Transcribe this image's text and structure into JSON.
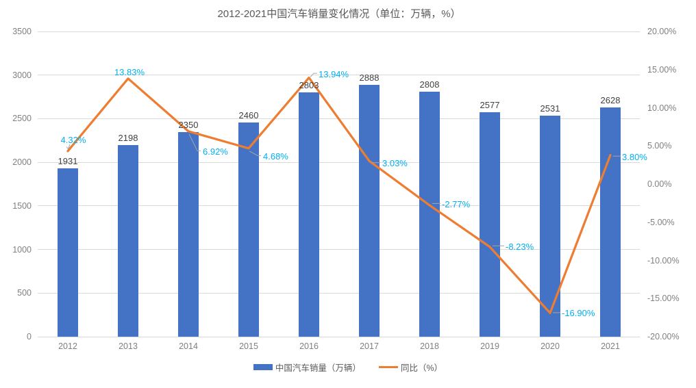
{
  "colors": {
    "bar": "#4472C4",
    "line": "#ED7D31",
    "pct_label": "#00B0F0",
    "value_label": "#404040",
    "axis_label": "#808080",
    "gridline": "#D9D9D9",
    "leader": "#A6A6A6",
    "title": "#595959",
    "legend_text": "#595959",
    "background": "#FFFFFF"
  },
  "legend": {
    "items": [
      {
        "label": "中国汽车销量（万辆）",
        "swatch": "bar-swatch"
      },
      {
        "label": "同比（%）",
        "swatch": "line-swatch"
      }
    ]
  },
  "chart_data": {
    "type": "combo bar+line",
    "title": "2012-2021中国汽车销量变化情况（单位：万辆，%）",
    "categories": [
      "2012",
      "2013",
      "2014",
      "2015",
      "2016",
      "2017",
      "2018",
      "2019",
      "2020",
      "2021"
    ],
    "series": [
      {
        "name": "中国汽车销量（万辆）",
        "type": "bar",
        "axis": "left",
        "color": "#4472C4",
        "values": [
          1931,
          2198,
          2350,
          2460,
          2803,
          2888,
          2808,
          2577,
          2531,
          2628
        ],
        "labels": [
          "1931",
          "2198",
          "2350",
          "2460",
          "2803",
          "2888",
          "2808",
          "2577",
          "2531",
          "2628"
        ]
      },
      {
        "name": "同比（%）",
        "type": "line",
        "axis": "right",
        "color": "#ED7D31",
        "values": [
          4.32,
          13.83,
          6.92,
          4.68,
          13.94,
          3.03,
          -2.77,
          -8.23,
          -16.9,
          3.8
        ],
        "labels": [
          "4.32%",
          "13.83%",
          "6.92%",
          "4.68%",
          "13.94%",
          "3.03%",
          "-2.77%",
          "-8.23%",
          "-16.90%",
          "3.80%"
        ]
      }
    ],
    "left_axis": {
      "min": 0,
      "max": 3500,
      "step": 500,
      "tick_labels": [
        "3500",
        "3000",
        "2500",
        "2000",
        "1500",
        "1000",
        "500",
        "0"
      ]
    },
    "right_axis": {
      "min": -20,
      "max": 20,
      "step": 5,
      "tick_labels": [
        "20.00%",
        "15.00%",
        "10.00%",
        "5.00%",
        "0.00%",
        "-5.00%",
        "-10.00%",
        "-15.00%",
        "-20.00%"
      ]
    },
    "grid": true,
    "legend_position": "bottom"
  }
}
